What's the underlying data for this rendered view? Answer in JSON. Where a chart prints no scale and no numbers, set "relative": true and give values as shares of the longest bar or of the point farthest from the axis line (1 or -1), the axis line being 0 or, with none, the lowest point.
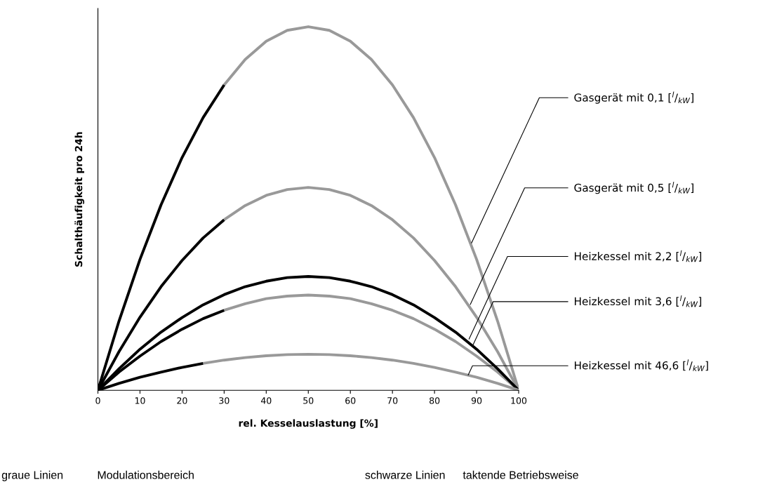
{
  "chart_data": {
    "type": "line",
    "relative": true,
    "xlabel": "rel. Kesselauslastung [%]",
    "ylabel": "Schalthäufigkeit pro 24h",
    "xlim": [
      0,
      100
    ],
    "xticks": [
      0,
      10,
      20,
      30,
      40,
      50,
      60,
      70,
      80,
      90,
      100
    ],
    "grid": false,
    "legend": false,
    "marker": "none",
    "line_style": "solid",
    "series": [
      {
        "color": "#999999",
        "x": [
          30,
          35,
          40,
          45,
          50,
          55,
          60,
          65,
          70,
          75,
          80,
          85,
          90,
          95,
          100
        ],
        "values": [
          0.84,
          0.91,
          0.96,
          0.99,
          1,
          0.99,
          0.96,
          0.91,
          0.84,
          0.75,
          0.64,
          0.51,
          0.36,
          0.19,
          0
        ]
      },
      {
        "color": "#000000",
        "x": [
          0,
          5,
          10,
          15,
          20,
          25,
          30
        ],
        "values": [
          0,
          0.19,
          0.36,
          0.51,
          0.64,
          0.75,
          0.84
        ]
      },
      {
        "color": "#999999",
        "x": [
          30,
          35,
          40,
          45,
          50,
          55,
          60,
          65,
          70,
          75,
          80,
          85,
          90,
          95,
          100
        ],
        "values": [
          0.469,
          0.508,
          0.536,
          0.552,
          0.558,
          0.552,
          0.536,
          0.508,
          0.469,
          0.419,
          0.357,
          0.285,
          0.201,
          0.106,
          0
        ]
      },
      {
        "color": "#000000",
        "x": [
          0,
          5,
          10,
          15,
          20,
          25,
          30
        ],
        "values": [
          0,
          0.106,
          0.201,
          0.285,
          0.357,
          0.419,
          0.469
        ]
      },
      {
        "color": "#999999",
        "x": [
          30,
          35,
          40,
          45,
          50,
          55,
          60,
          65,
          70,
          75,
          80,
          85,
          90,
          95,
          100
        ],
        "values": [
          0.22,
          0.238,
          0.252,
          0.259,
          0.262,
          0.259,
          0.252,
          0.238,
          0.22,
          0.197,
          0.168,
          0.134,
          0.094,
          0.05,
          0
        ]
      },
      {
        "color": "#000000",
        "x": [
          0,
          5,
          10,
          15,
          20,
          25,
          30
        ],
        "values": [
          0,
          0.05,
          0.094,
          0.134,
          0.168,
          0.197,
          0.22
        ]
      },
      {
        "color": "#000000",
        "x": [
          0,
          5,
          10,
          15,
          20,
          25,
          30,
          35,
          40,
          45,
          50,
          55,
          60,
          65,
          70,
          75,
          80,
          85,
          90,
          95,
          100
        ],
        "values": [
          0,
          0.059,
          0.113,
          0.16,
          0.2,
          0.235,
          0.263,
          0.285,
          0.3,
          0.31,
          0.313,
          0.31,
          0.3,
          0.285,
          0.263,
          0.235,
          0.2,
          0.16,
          0.113,
          0.059,
          0
        ]
      },
      {
        "color": "#999999",
        "x": [
          25,
          30,
          35,
          40,
          45,
          50,
          55,
          60,
          65,
          70,
          75,
          80,
          85,
          90,
          95,
          100
        ],
        "values": [
          0.074,
          0.083,
          0.09,
          0.095,
          0.098,
          0.099,
          0.098,
          0.095,
          0.09,
          0.083,
          0.074,
          0.063,
          0.05,
          0.036,
          0.019,
          0
        ]
      },
      {
        "color": "#000000",
        "x": [
          0,
          5,
          10,
          15,
          20,
          25
        ],
        "values": [
          0,
          0.019,
          0.036,
          0.05,
          0.063,
          0.074
        ]
      }
    ],
    "annotations": [
      {
        "text": "Gasgerät mit 0,1 [$^{l}$/$_{kW}$]",
        "x": 88.8,
        "y": 0.405
      },
      {
        "text": "Gasgerät mit 0,5 [$^{l}$/$_{kW}$]",
        "x": 88.5,
        "y": 0.236
      },
      {
        "text": "Heizkessel mit 2,2 [$^{l}$/$_{kW}$]",
        "x": 88.2,
        "y": 0.141
      },
      {
        "text": "Heizkessel mit 3,6 [$^{l}$/$_{kW}$]",
        "x": 89,
        "y": 0.121
      },
      {
        "text": "Heizkessel mit 46,6 [$^{l}$/$_{kW}$]",
        "x": 88,
        "y": 0.042
      },
      "graue Linien",
      "Modulationsbereich",
      "schwarze Linien",
      "taktende Betriebsweise"
    ]
  }
}
